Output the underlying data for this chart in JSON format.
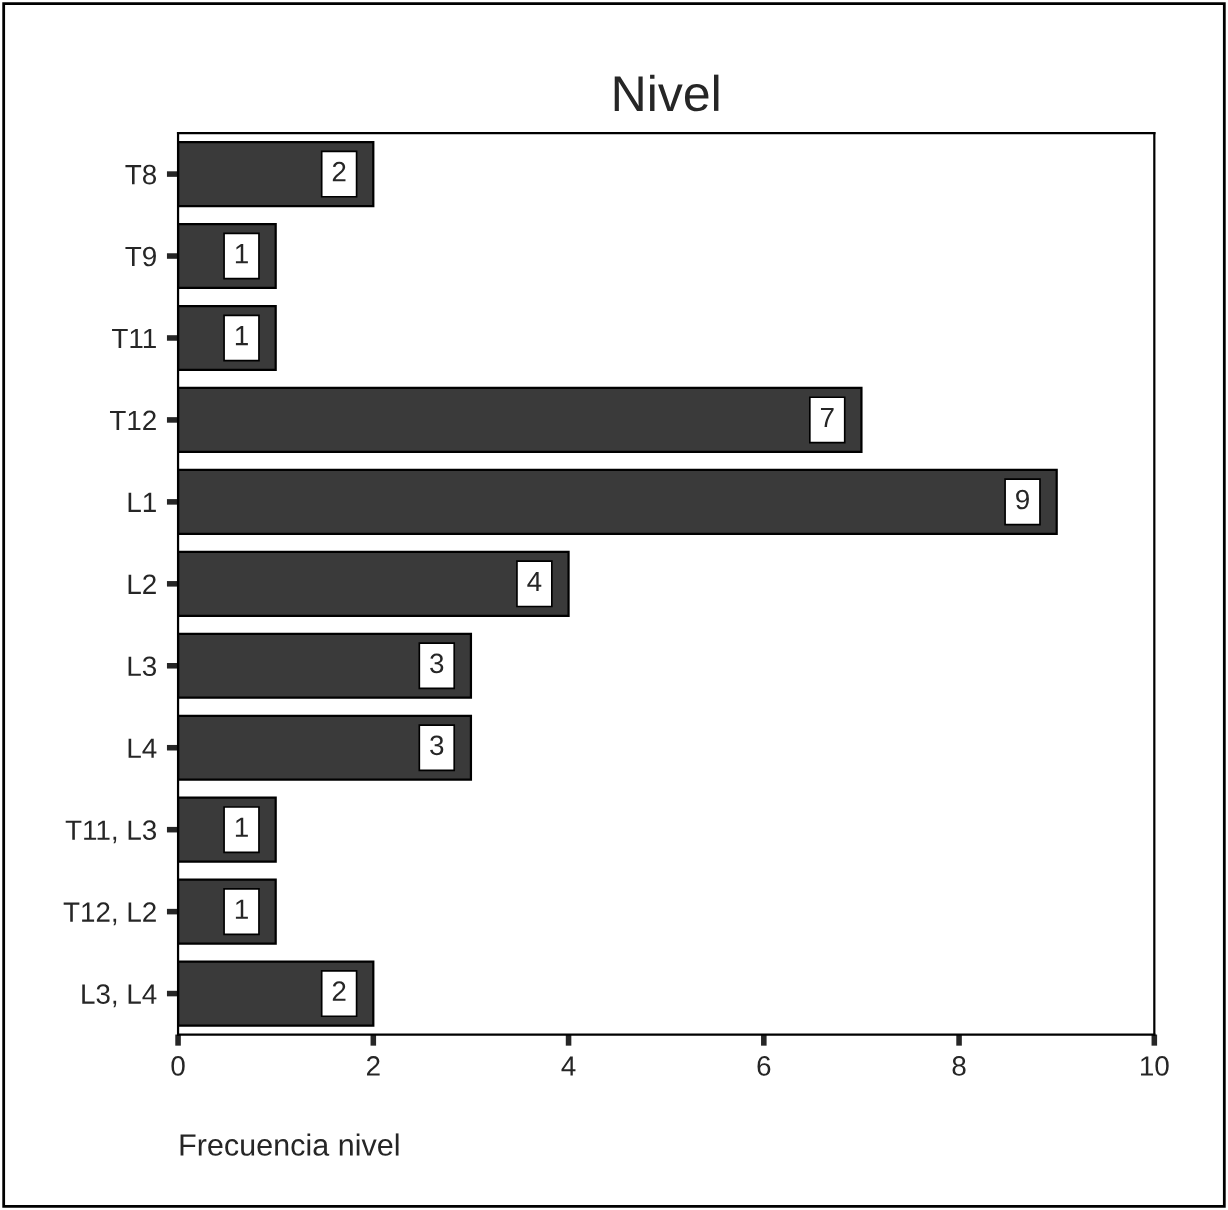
{
  "chart_data": {
    "type": "bar",
    "orientation": "horizontal",
    "title": "Nivel",
    "xlabel": "Frecuencia nivel",
    "categories": [
      "T8",
      "T9",
      "T11",
      "T12",
      "L1",
      "L2",
      "L3",
      "L4",
      "T11, L3",
      "T12, L2",
      "L3, L4"
    ],
    "values": [
      2,
      1,
      1,
      7,
      9,
      4,
      3,
      3,
      1,
      1,
      2
    ],
    "color": "#3a3a3a",
    "xlim": [
      0,
      10
    ],
    "xticks": [
      0,
      2,
      4,
      6,
      8,
      10
    ],
    "grid": false,
    "data_labels": true
  }
}
